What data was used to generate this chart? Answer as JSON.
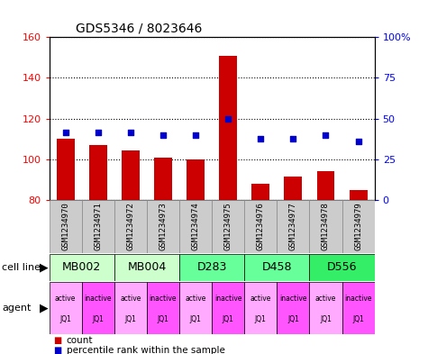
{
  "title": "GDS5346 / 8023646",
  "samples": [
    "GSM1234970",
    "GSM1234971",
    "GSM1234972",
    "GSM1234973",
    "GSM1234974",
    "GSM1234975",
    "GSM1234976",
    "GSM1234977",
    "GSM1234978",
    "GSM1234979"
  ],
  "counts": [
    110,
    107,
    104.5,
    101,
    100,
    151,
    88,
    91.5,
    94,
    85
  ],
  "percentile_ranks": [
    113,
    113,
    113,
    112,
    112,
    120,
    110,
    110,
    112,
    109
  ],
  "ylim_left": [
    80,
    160
  ],
  "ylim_right": [
    0,
    100
  ],
  "yticks_left": [
    80,
    100,
    120,
    140,
    160
  ],
  "yticks_right": [
    0,
    25,
    50,
    75,
    100
  ],
  "cell_lines": [
    {
      "label": "MB002",
      "cols": [
        0,
        1
      ],
      "color": "#ccffcc"
    },
    {
      "label": "MB004",
      "cols": [
        2,
        3
      ],
      "color": "#ccffcc"
    },
    {
      "label": "D283",
      "cols": [
        4,
        5
      ],
      "color": "#66ff99"
    },
    {
      "label": "D458",
      "cols": [
        6,
        7
      ],
      "color": "#66ff99"
    },
    {
      "label": "D556",
      "cols": [
        8,
        9
      ],
      "color": "#33ee66"
    }
  ],
  "agents": [
    {
      "label": "active\nJQ1",
      "color": "#ffaaff"
    },
    {
      "label": "inactive\nJQ1",
      "color": "#ff55ff"
    },
    {
      "label": "active\nJQ1",
      "color": "#ffaaff"
    },
    {
      "label": "inactive\nJQ1",
      "color": "#ff55ff"
    },
    {
      "label": "active\nJQ1",
      "color": "#ffaaff"
    },
    {
      "label": "inactive\nJQ1",
      "color": "#ff55ff"
    },
    {
      "label": "active\nJQ1",
      "color": "#ffaaff"
    },
    {
      "label": "inactive\nJQ1",
      "color": "#ff55ff"
    },
    {
      "label": "active\nJQ1",
      "color": "#ffaaff"
    },
    {
      "label": "inactive\nJQ1",
      "color": "#ff55ff"
    }
  ],
  "bar_color": "#cc0000",
  "dot_color": "#0000cc",
  "bar_bottom": 80,
  "background_color": "#ffffff",
  "sample_box_color": "#cccccc",
  "sample_box_edge": "#888888"
}
